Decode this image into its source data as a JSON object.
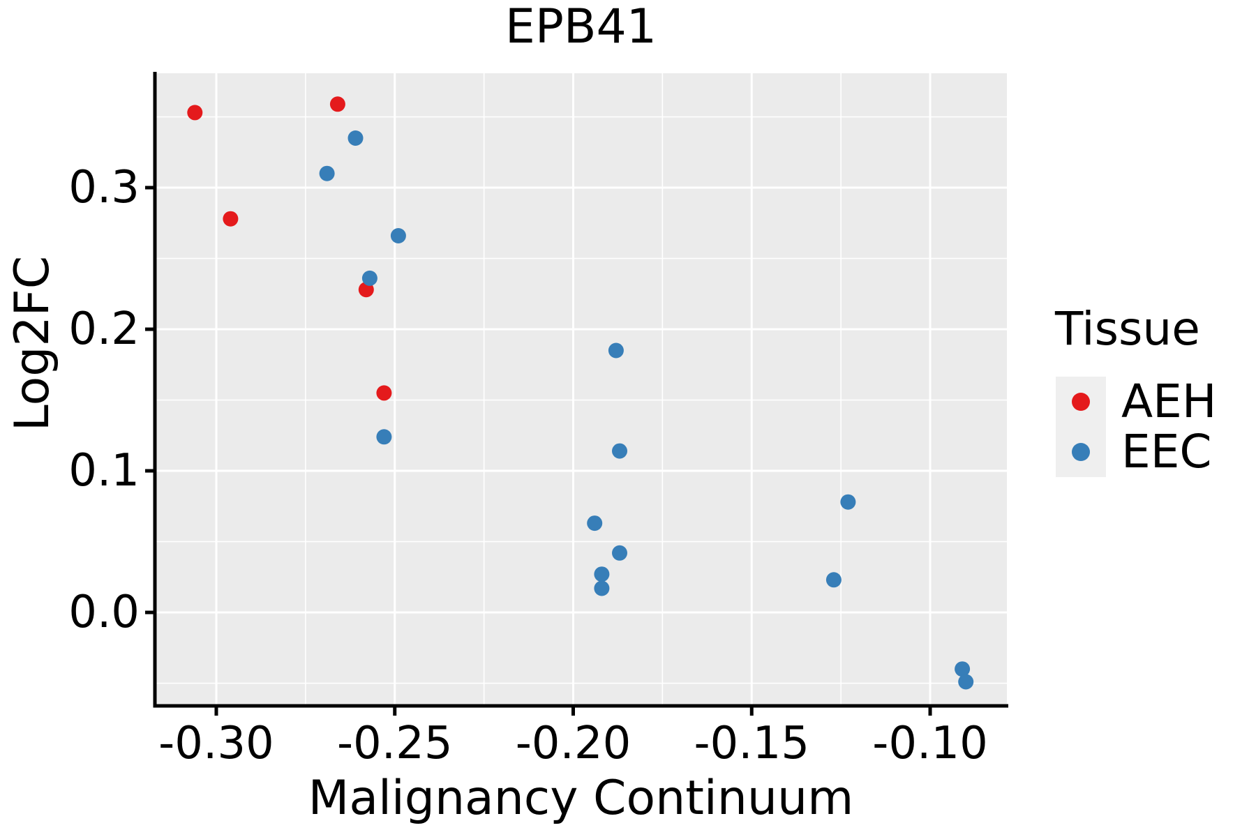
{
  "figure": {
    "title": "EPB41",
    "x_axis_label": "Malignancy Continuum",
    "y_axis_label": "Log2FC",
    "legend": {
      "title": "Tissue",
      "items": [
        {
          "label": "AEH",
          "color": "#e41a1c"
        },
        {
          "label": "EEC",
          "color": "#377eb8"
        }
      ]
    },
    "colors": {
      "panel_background": "#ebebeb",
      "gridline": "#ffffff",
      "axis_line": "#000000",
      "legend_key_background": "#efefef",
      "text": "#000000"
    }
  },
  "chart_data": {
    "type": "scatter",
    "title": "EPB41",
    "xlabel": "Malignancy Continuum",
    "ylabel": "Log2FC",
    "legend_title": "Tissue",
    "legend_position": "right",
    "grid": "major and minor white gridlines on gray panel",
    "xlim": [
      -0.3172,
      -0.0785
    ],
    "ylim": [
      -0.066,
      0.3808
    ],
    "x_ticks": [
      {
        "value": -0.3,
        "label": "-0.30"
      },
      {
        "value": -0.25,
        "label": "-0.25"
      },
      {
        "value": -0.2,
        "label": "-0.20"
      },
      {
        "value": -0.15,
        "label": "-0.15"
      },
      {
        "value": -0.1,
        "label": "-0.10"
      }
    ],
    "y_ticks": [
      {
        "value": 0.0,
        "label": "0.0"
      },
      {
        "value": 0.1,
        "label": "0.1"
      },
      {
        "value": 0.2,
        "label": "0.2"
      },
      {
        "value": 0.3,
        "label": "0.3"
      }
    ],
    "x_minor_ticks": [
      -0.275,
      -0.225,
      -0.175,
      -0.125
    ],
    "y_minor_ticks": [
      -0.05,
      0.05,
      0.15,
      0.25,
      0.35
    ],
    "series": [
      {
        "name": "AEH",
        "color": "#e41a1c",
        "points": [
          [
            -0.306,
            0.353
          ],
          [
            -0.266,
            0.359
          ],
          [
            -0.296,
            0.278
          ],
          [
            -0.258,
            0.228
          ],
          [
            -0.253,
            0.155
          ]
        ]
      },
      {
        "name": "EEC",
        "color": "#377eb8",
        "points": [
          [
            -0.261,
            0.335
          ],
          [
            -0.269,
            0.31
          ],
          [
            -0.249,
            0.266
          ],
          [
            -0.257,
            0.236
          ],
          [
            -0.253,
            0.124
          ],
          [
            -0.188,
            0.185
          ],
          [
            -0.187,
            0.114
          ],
          [
            -0.194,
            0.063
          ],
          [
            -0.187,
            0.042
          ],
          [
            -0.192,
            0.027
          ],
          [
            -0.192,
            0.017
          ],
          [
            -0.123,
            0.078
          ],
          [
            -0.127,
            0.023
          ],
          [
            -0.091,
            -0.04
          ],
          [
            -0.09,
            -0.049
          ]
        ]
      }
    ]
  }
}
